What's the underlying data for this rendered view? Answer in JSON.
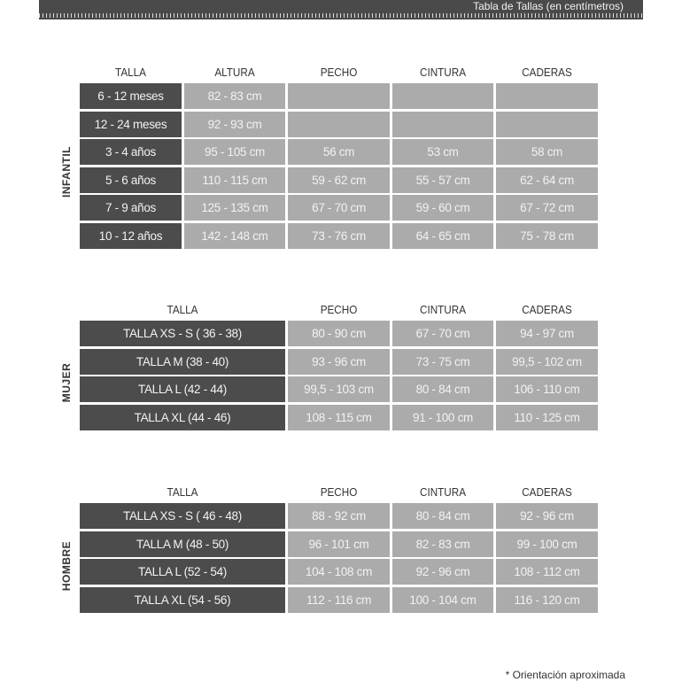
{
  "header": {
    "title": "Tabla de Tallas (en centímetros)"
  },
  "infantil": {
    "label": "INFANTIL",
    "columns": [
      "TALLA",
      "ALTURA",
      "PECHO",
      "CINTURA",
      "CADERAS"
    ],
    "rows": [
      [
        "6 - 12 meses",
        "82 - 83 cm",
        "",
        "",
        ""
      ],
      [
        "12 - 24 meses",
        "92 - 93 cm",
        "",
        "",
        ""
      ],
      [
        "3 - 4 años",
        "95 - 105 cm",
        "56 cm",
        "53 cm",
        "58 cm"
      ],
      [
        "5 - 6 años",
        "110 - 115 cm",
        "59 - 62 cm",
        "55 - 57 cm",
        "62 - 64 cm"
      ],
      [
        "7 - 9 años",
        "125 - 135 cm",
        "67 - 70 cm",
        "59 - 60 cm",
        "67 - 72 cm"
      ],
      [
        "10 - 12 años",
        "142 - 148 cm",
        "73 - 76 cm",
        "64 - 65 cm",
        "75 - 78 cm"
      ]
    ]
  },
  "mujer": {
    "label": "MUJER",
    "columns": [
      "TALLA",
      "PECHO",
      "CINTURA",
      "CADERAS"
    ],
    "rows": [
      [
        "TALLA XS - S ( 36 - 38)",
        "80 - 90 cm",
        "67 - 70 cm",
        "94 - 97 cm"
      ],
      [
        "TALLA M (38 - 40)",
        "93 - 96 cm",
        "73 - 75 cm",
        "99,5 - 102 cm"
      ],
      [
        "TALLA L (42 - 44)",
        "99,5 - 103 cm",
        "80 - 84 cm",
        "106 - 110 cm"
      ],
      [
        "TALLA XL (44 - 46)",
        "108 - 115 cm",
        "91 - 100 cm",
        "110 - 125 cm"
      ]
    ]
  },
  "hombre": {
    "label": "HOMBRE",
    "columns": [
      "TALLA",
      "PECHO",
      "CINTURA",
      "CADERAS"
    ],
    "rows": [
      [
        "TALLA XS - S ( 46 - 48)",
        "88 - 92 cm",
        "80 - 84 cm",
        "92 - 96 cm"
      ],
      [
        "TALLA M (48 - 50)",
        "96 - 101 cm",
        "82 - 83 cm",
        "99 - 100 cm"
      ],
      [
        "TALLA L (52 - 54)",
        "104 - 108 cm",
        "92 - 96 cm",
        "108 - 112 cm"
      ],
      [
        "TALLA XL (54 - 56)",
        "112 - 116 cm",
        "100 - 104 cm",
        "116 - 120 cm"
      ]
    ]
  },
  "footnote": "* Orientación aproximada",
  "colors": {
    "dark": "#4c4c4c",
    "light": "#ababab"
  }
}
